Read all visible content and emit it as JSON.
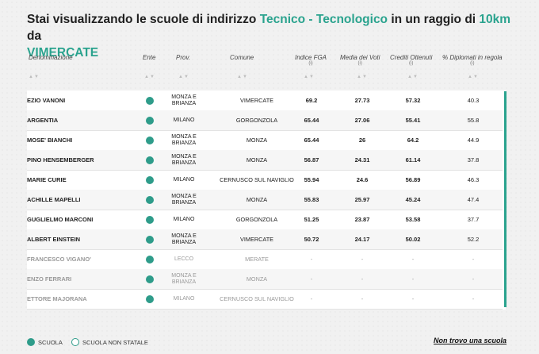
{
  "title": {
    "prefix": "Stai visualizzando le scuole di indirizzo ",
    "indirizzo": "Tecnico - Tecnologico",
    "middle": " in un raggio di ",
    "raggio": "10km",
    "suffix": " da",
    "citta": "VIMERCATE"
  },
  "columns": {
    "denominazione": "Denominazione",
    "ente": "Ente",
    "prov": "Prov.",
    "comune": "Comune",
    "fga": "Indice FGA",
    "voti": "Media dei Voti",
    "crediti": "Crediti Ottenuti",
    "diplomati": "% Diplomati in regola",
    "info": "(i)",
    "sort": "▲▼"
  },
  "rows": [
    {
      "name": "EZIO VANONI",
      "prov": "MONZA E BRIANZA",
      "comune": "VIMERCATE",
      "fga": "69.2",
      "voti": "27.73",
      "crediti": "57.32",
      "dipl": "40.3"
    },
    {
      "name": "ARGENTIA",
      "prov": "MILANO",
      "comune": "GORGONZOLA",
      "fga": "65.44",
      "voti": "27.06",
      "crediti": "55.41",
      "dipl": "55.8"
    },
    {
      "name": "MOSE' BIANCHI",
      "prov": "MONZA E BRIANZA",
      "comune": "MONZA",
      "fga": "65.44",
      "voti": "26",
      "crediti": "64.2",
      "dipl": "44.9"
    },
    {
      "name": "PINO HENSEMBERGER",
      "prov": "MONZA E BRIANZA",
      "comune": "MONZA",
      "fga": "56.87",
      "voti": "24.31",
      "crediti": "61.14",
      "dipl": "37.8"
    },
    {
      "name": "MARIE CURIE",
      "prov": "MILANO",
      "comune": "CERNUSCO SUL NAVIGLIO",
      "fga": "55.94",
      "voti": "24.6",
      "crediti": "56.89",
      "dipl": "46.3"
    },
    {
      "name": "ACHILLE MAPELLI",
      "prov": "MONZA E BRIANZA",
      "comune": "MONZA",
      "fga": "55.83",
      "voti": "25.97",
      "crediti": "45.24",
      "dipl": "47.4"
    },
    {
      "name": "GUGLIELMO MARCONI",
      "prov": "MILANO",
      "comune": "GORGONZOLA",
      "fga": "51.25",
      "voti": "23.87",
      "crediti": "53.58",
      "dipl": "37.7"
    },
    {
      "name": "ALBERT EINSTEIN",
      "prov": "MONZA E BRIANZA",
      "comune": "VIMERCATE",
      "fga": "50.72",
      "voti": "24.17",
      "crediti": "50.02",
      "dipl": "52.2"
    },
    {
      "name": "FRANCESCO VIGANO'",
      "prov": "LECCO",
      "comune": "MERATE",
      "fga": "-",
      "voti": "-",
      "crediti": "-",
      "dipl": "-"
    },
    {
      "name": "ENZO FERRARI",
      "prov": "MONZA E BRIANZA",
      "comune": "MONZA",
      "fga": "-",
      "voti": "-",
      "crediti": "-",
      "dipl": "-"
    },
    {
      "name": "ETTORE MAJORANA",
      "prov": "MILANO",
      "comune": "CERNUSCO SUL NAVIGLIO",
      "fga": "-",
      "voti": "-",
      "crediti": "-",
      "dipl": "-"
    }
  ],
  "legend": {
    "scuola": "SCUOLA",
    "non_statale": "SCUOLA NON STATALE"
  },
  "link": "Non trovo una scuola",
  "colors": {
    "accent": "#2aa38e",
    "dot": "#2e9c8a"
  }
}
